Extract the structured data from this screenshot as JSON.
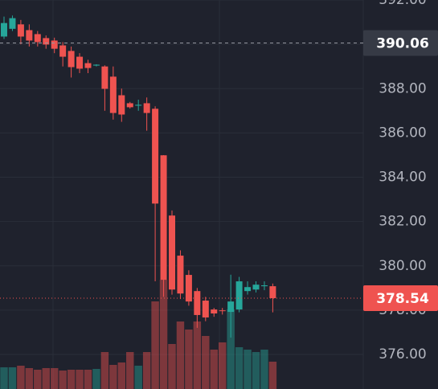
{
  "chart_data": {
    "type": "candlestick",
    "open": [
      390.35,
      390.7,
      390.9,
      390.64,
      390.46,
      390.28,
      390.17,
      389.95,
      389.7,
      389.44,
      389.15,
      389.04,
      389.0,
      388.54,
      387.7,
      387.34,
      387.23,
      387.34,
      387.09,
      384.99,
      382.27,
      380.46,
      379.59,
      378.86,
      378.43,
      378.03,
      377.99,
      377.92,
      378.03,
      378.86,
      378.93,
      379.08,
      379.08
    ],
    "high": [
      391.25,
      391.3,
      391.1,
      390.9,
      390.6,
      390.4,
      390.3,
      390.1,
      389.9,
      389.6,
      389.3,
      389.1,
      389.05,
      389.0,
      388.0,
      387.4,
      387.5,
      387.6,
      387.2,
      385.0,
      382.5,
      380.7,
      379.8,
      379.0,
      378.6,
      378.1,
      378.1,
      379.6,
      379.5,
      379.3,
      379.3,
      379.3,
      379.2
    ],
    "low": [
      390.24,
      390.6,
      390.0,
      389.9,
      389.9,
      389.8,
      389.6,
      389.0,
      388.5,
      388.7,
      388.7,
      389.0,
      387.0,
      386.6,
      386.5,
      387.1,
      387.0,
      386.1,
      379.3,
      378.6,
      378.7,
      378.5,
      378.2,
      377.2,
      377.5,
      377.7,
      377.8,
      376.76,
      377.9,
      378.7,
      378.8,
      378.9,
      377.9
    ],
    "close": [
      390.96,
      391.18,
      390.35,
      390.17,
      390.1,
      389.99,
      389.8,
      389.44,
      388.97,
      388.9,
      388.93,
      389.08,
      387.99,
      386.9,
      386.83,
      387.16,
      387.27,
      386.9,
      382.81,
      379.37,
      378.93,
      378.75,
      378.39,
      377.78,
      377.67,
      377.85,
      377.96,
      378.39,
      379.3,
      379.04,
      379.15,
      379.12,
      378.54
    ],
    "volume": [
      27,
      27,
      29,
      26,
      24,
      26,
      26,
      23,
      24,
      24,
      24,
      25,
      46,
      30,
      33,
      46,
      29,
      46,
      109,
      136,
      56,
      84,
      74,
      84,
      66,
      49,
      58,
      99,
      52,
      49,
      46,
      49,
      34
    ],
    "up_color": "#26a69a",
    "down_color": "#ef5350",
    "ylim": [
      374.44,
      392
    ],
    "yticks": [
      {
        "value": 376,
        "label": "376.00"
      },
      {
        "value": 378,
        "label": "378.00"
      },
      {
        "value": 380,
        "label": "380.00"
      },
      {
        "value": 382,
        "label": "382.00"
      },
      {
        "value": 384,
        "label": "384.00"
      },
      {
        "value": 386,
        "label": "386.00"
      },
      {
        "value": 388,
        "label": "388.00"
      },
      {
        "value": 390,
        "label": "390.00"
      },
      {
        "value": 392,
        "label": "392.00"
      }
    ],
    "grid": true,
    "crosshair_price": 390.06,
    "last_price": 378.54
  }
}
